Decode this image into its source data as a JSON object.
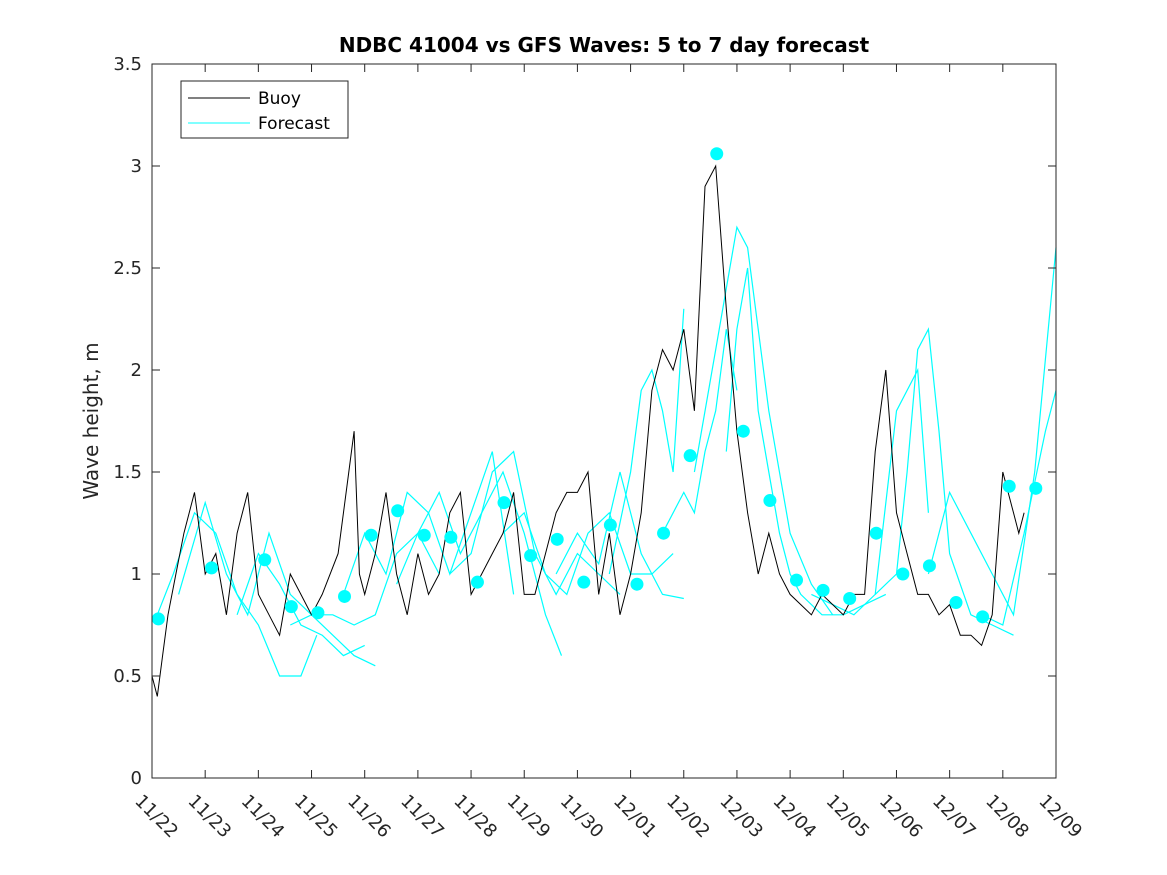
{
  "chart_data": {
    "type": "line",
    "title": "NDBC 41004 vs GFS Waves: 5 to 7 day forecast",
    "xlabel": "",
    "ylabel": "Wave height, m",
    "xlim": [
      0,
      17
    ],
    "ylim": [
      0,
      3.5
    ],
    "yticks": [
      0,
      0.5,
      1,
      1.5,
      2,
      2.5,
      3,
      3.5
    ],
    "ytick_labels": [
      "0",
      "0.5",
      "1",
      "1.5",
      "2",
      "2.5",
      "3",
      "3.5"
    ],
    "xticks": [
      0,
      1,
      2,
      3,
      4,
      5,
      6,
      7,
      8,
      9,
      10,
      11,
      12,
      13,
      14,
      15,
      16,
      17
    ],
    "xtick_labels": [
      "11/22",
      "11/23",
      "11/24",
      "11/25",
      "11/26",
      "11/27",
      "11/28",
      "11/29",
      "11/30",
      "12/01",
      "12/02",
      "12/03",
      "12/04",
      "12/05",
      "12/06",
      "12/07",
      "12/08",
      "12/09"
    ],
    "legend": {
      "position": "top-left",
      "entries": [
        {
          "name": "Buoy",
          "color": "#000000"
        },
        {
          "name": "Forecast",
          "color": "#00ffff"
        }
      ]
    },
    "colors": {
      "buoy": "#000000",
      "forecast": "#00ffff",
      "axes": "#262626"
    },
    "series": [
      {
        "name": "Buoy",
        "x": [
          0,
          0.1,
          0.2,
          0.3,
          0.45,
          0.6,
          0.8,
          1.0,
          1.2,
          1.4,
          1.6,
          1.8,
          2.0,
          2.2,
          2.4,
          2.6,
          2.8,
          3.0,
          3.2,
          3.5,
          3.7,
          3.8,
          3.9,
          4.0,
          4.2,
          4.4,
          4.6,
          4.8,
          5.0,
          5.2,
          5.4,
          5.6,
          5.8,
          6.0,
          6.2,
          6.4,
          6.6,
          6.8,
          7.0,
          7.2,
          7.4,
          7.6,
          7.8,
          8.0,
          8.2,
          8.4,
          8.6,
          8.8,
          9.0,
          9.2,
          9.4,
          9.6,
          9.8,
          10.0,
          10.2,
          10.4,
          10.6,
          10.8,
          11.0,
          11.2,
          11.4,
          11.6,
          11.8,
          12.0,
          12.2,
          12.4,
          12.6,
          12.8,
          13.0,
          13.2,
          13.4,
          13.6,
          13.8,
          14.0,
          14.2,
          14.4,
          14.6,
          14.8,
          15.0,
          15.2,
          15.4,
          15.6,
          15.8,
          16.0,
          16.2,
          16.3,
          16.4
        ],
        "values": [
          0.5,
          0.4,
          0.6,
          0.8,
          1.0,
          1.2,
          1.4,
          1.0,
          1.1,
          0.8,
          1.2,
          1.4,
          0.9,
          0.8,
          0.7,
          1.0,
          0.9,
          0.8,
          0.9,
          1.1,
          1.5,
          1.7,
          1.0,
          0.9,
          1.1,
          1.4,
          1.0,
          0.8,
          1.1,
          0.9,
          1.0,
          1.3,
          1.4,
          0.9,
          1.0,
          1.1,
          1.2,
          1.4,
          0.9,
          0.9,
          1.1,
          1.3,
          1.4,
          1.4,
          1.5,
          0.9,
          1.2,
          0.8,
          1.0,
          1.3,
          1.9,
          2.1,
          2.0,
          2.2,
          1.8,
          2.9,
          3.0,
          2.3,
          1.7,
          1.3,
          1.0,
          1.2,
          1.0,
          0.9,
          0.85,
          0.8,
          0.9,
          0.85,
          0.8,
          0.9,
          0.9,
          1.6,
          2.0,
          1.3,
          1.1,
          0.9,
          0.9,
          0.8,
          0.85,
          0.7,
          0.7,
          0.65,
          0.8,
          1.5,
          1.3,
          1.2,
          1.3
        ]
      },
      {
        "name": "Forecast",
        "segments": [
          {
            "x": [
              0.1,
              0.4,
              0.8,
              1.2,
              1.6,
              2.0,
              2.4,
              2.8,
              3.1
            ],
            "values": [
              0.8,
              1.0,
              1.3,
              1.2,
              0.9,
              0.75,
              0.5,
              0.5,
              0.7
            ]
          },
          {
            "x": [
              0.5,
              1.0,
              1.4,
              1.8,
              2.2,
              2.6,
              3.0,
              3.4,
              3.8,
              4.2
            ],
            "values": [
              0.9,
              1.35,
              1.0,
              0.8,
              1.2,
              0.9,
              0.8,
              0.7,
              0.6,
              0.55
            ]
          },
          {
            "x": [
              1.6,
              2.0,
              2.4,
              2.8,
              3.2,
              3.6,
              4.0
            ],
            "values": [
              0.8,
              1.1,
              0.95,
              0.75,
              0.7,
              0.6,
              0.65
            ]
          },
          {
            "x": [
              2.6,
              3.0,
              3.4,
              3.8,
              4.2,
              4.6,
              5.0,
              5.4
            ],
            "values": [
              0.75,
              0.8,
              0.8,
              0.75,
              0.8,
              1.1,
              1.2,
              1.0
            ]
          },
          {
            "x": [
              3.6,
              4.0,
              4.4,
              4.8,
              5.2,
              5.6,
              6.0,
              6.4,
              6.8
            ],
            "values": [
              0.9,
              1.2,
              1.0,
              1.4,
              1.3,
              1.0,
              1.3,
              1.6,
              0.9
            ]
          },
          {
            "x": [
              4.6,
              5.0,
              5.4,
              5.8,
              6.2,
              6.6,
              7.0,
              7.4,
              7.7
            ],
            "values": [
              0.95,
              1.2,
              1.4,
              1.1,
              1.3,
              1.5,
              1.2,
              0.8,
              0.6
            ]
          },
          {
            "x": [
              5.6,
              6.0,
              6.4,
              6.8,
              7.2,
              7.6,
              8.0,
              8.4,
              8.8
            ],
            "values": [
              1.0,
              1.1,
              1.5,
              1.6,
              1.1,
              0.9,
              1.1,
              1.0,
              0.9
            ]
          },
          {
            "x": [
              6.6,
              7.0,
              7.4,
              7.8,
              8.2,
              8.6,
              9.0,
              9.4,
              9.8
            ],
            "values": [
              1.2,
              1.3,
              1.0,
              0.9,
              1.2,
              1.3,
              1.0,
              1.0,
              1.1
            ]
          },
          {
            "x": [
              7.6,
              8.0,
              8.4,
              8.8,
              9.2,
              9.6,
              10.0
            ],
            "values": [
              1.0,
              1.2,
              1.05,
              1.5,
              1.1,
              0.9,
              0.88
            ]
          },
          {
            "x": [
              8.6,
              9.0,
              9.2,
              9.4,
              9.6,
              9.8,
              10.0
            ],
            "values": [
              1.0,
              1.5,
              1.9,
              2.0,
              1.8,
              1.5,
              2.3
            ]
          },
          {
            "x": [
              9.6,
              10.0,
              10.2,
              10.4,
              10.6,
              10.8,
              11.0
            ],
            "values": [
              1.2,
              1.4,
              1.3,
              1.6,
              1.8,
              2.2,
              1.9
            ]
          },
          {
            "x": [
              10.2,
              10.6,
              10.8,
              11.0,
              11.2,
              11.4,
              11.6,
              12.0,
              12.4,
              12.8
            ],
            "values": [
              1.5,
              2.1,
              2.4,
              2.7,
              2.6,
              2.2,
              1.8,
              1.2,
              0.95,
              0.8
            ]
          },
          {
            "x": [
              10.8,
              11.0,
              11.2,
              11.4,
              11.6,
              11.8,
              12.0,
              12.2,
              12.6,
              13.0,
              13.4,
              13.8
            ],
            "values": [
              1.6,
              2.2,
              2.5,
              1.8,
              1.5,
              1.2,
              1.0,
              0.9,
              0.8,
              0.8,
              0.85,
              0.9
            ]
          },
          {
            "x": [
              12.4,
              12.8,
              13.2,
              13.6,
              14.0,
              14.4,
              14.6
            ],
            "values": [
              0.9,
              0.85,
              0.8,
              0.9,
              1.8,
              2.0,
              1.3
            ]
          },
          {
            "x": [
              13.6,
              14.0,
              14.2,
              14.4,
              14.6,
              14.8,
              15.0,
              15.4,
              15.8,
              16.2
            ],
            "values": [
              0.9,
              1.0,
              1.5,
              2.1,
              2.2,
              1.7,
              1.1,
              0.8,
              0.75,
              0.7
            ]
          },
          {
            "x": [
              14.6,
              15.0,
              15.4,
              15.8,
              16.2,
              16.6,
              17.0
            ],
            "values": [
              1.0,
              1.4,
              1.2,
              1.0,
              0.8,
              1.5,
              2.6
            ]
          },
          {
            "x": [
              15.6,
              16.0,
              16.4,
              16.8,
              17.0
            ],
            "values": [
              0.8,
              0.75,
              1.2,
              1.7,
              1.9
            ]
          }
        ]
      },
      {
        "name": "Forecast points",
        "x": [
          0.12,
          1.12,
          2.12,
          2.62,
          3.12,
          3.62,
          4.12,
          4.62,
          5.12,
          5.62,
          6.12,
          6.62,
          7.12,
          7.62,
          8.12,
          8.62,
          9.12,
          9.62,
          10.12,
          10.62,
          11.12,
          11.62,
          12.12,
          12.62,
          13.12,
          13.62,
          14.12,
          14.62,
          15.12,
          15.62,
          16.12,
          16.62
        ],
        "values": [
          0.78,
          1.03,
          1.07,
          0.84,
          0.81,
          0.89,
          1.19,
          1.31,
          1.19,
          1.18,
          0.96,
          1.35,
          1.09,
          1.17,
          0.96,
          1.24,
          0.95,
          1.2,
          1.58,
          3.06,
          1.7,
          1.36,
          0.97,
          0.92,
          0.88,
          1.2,
          1.0,
          1.04,
          0.86,
          0.79,
          1.43,
          1.42
        ]
      }
    ]
  }
}
